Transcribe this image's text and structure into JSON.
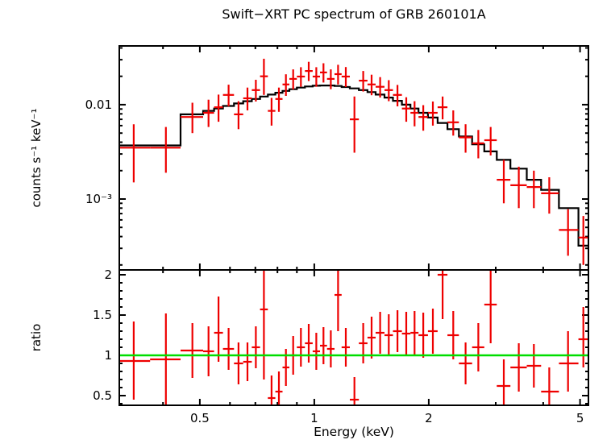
{
  "chart_data": [
    {
      "type": "scatter",
      "name": "spectrum",
      "title": "Swift−XRT PC spectrum of GRB 260101A",
      "ylabel": "counts s⁻¹ keV⁻¹",
      "yscale": "log",
      "ylim": [
        0.000177,
        0.042
      ],
      "y_ticks": [
        {
          "v": 0.01,
          "label": "0.01"
        },
        {
          "v": 0.001,
          "label": "10⁻³"
        }
      ],
      "y_minor": [
        0.0002,
        0.0003,
        0.0004,
        0.0005,
        0.0006,
        0.0007,
        0.0008,
        0.0009,
        0.002,
        0.003,
        0.004,
        0.005,
        0.006,
        0.007,
        0.008,
        0.009,
        0.02,
        0.03,
        0.04
      ],
      "point_color": "#ee0000",
      "points_format": [
        "E",
        "E_lo",
        "E_hi",
        "value",
        "value_lo",
        "value_hi"
      ],
      "points": [
        [
          0.335,
          0.307,
          0.37,
          0.0035,
          0.0015,
          0.0062
        ],
        [
          0.407,
          0.37,
          0.445,
          0.0035,
          0.0019,
          0.0058
        ],
        [
          0.478,
          0.445,
          0.51,
          0.0074,
          0.005,
          0.0105
        ],
        [
          0.527,
          0.51,
          0.545,
          0.0082,
          0.0058,
          0.0113
        ],
        [
          0.56,
          0.545,
          0.575,
          0.0094,
          0.0066,
          0.0128
        ],
        [
          0.595,
          0.575,
          0.615,
          0.0127,
          0.0096,
          0.0163
        ],
        [
          0.632,
          0.615,
          0.65,
          0.0079,
          0.0055,
          0.0109
        ],
        [
          0.667,
          0.65,
          0.685,
          0.0117,
          0.0087,
          0.0152
        ],
        [
          0.702,
          0.685,
          0.72,
          0.0143,
          0.0108,
          0.0184
        ],
        [
          0.737,
          0.72,
          0.755,
          0.02,
          0.0127,
          0.0307
        ],
        [
          0.772,
          0.755,
          0.79,
          0.0086,
          0.006,
          0.0118
        ],
        [
          0.807,
          0.79,
          0.825,
          0.0115,
          0.0084,
          0.0152
        ],
        [
          0.842,
          0.825,
          0.86,
          0.0164,
          0.0124,
          0.021
        ],
        [
          0.88,
          0.86,
          0.9,
          0.0188,
          0.0145,
          0.0237
        ],
        [
          0.922,
          0.9,
          0.945,
          0.0199,
          0.0155,
          0.025
        ],
        [
          0.967,
          0.945,
          0.99,
          0.0228,
          0.0178,
          0.0285
        ],
        [
          1.012,
          0.99,
          1.035,
          0.0199,
          0.0155,
          0.025
        ],
        [
          1.057,
          1.035,
          1.08,
          0.022,
          0.0172,
          0.0275
        ],
        [
          1.105,
          1.08,
          1.13,
          0.0188,
          0.0146,
          0.0237
        ],
        [
          1.155,
          1.13,
          1.18,
          0.0211,
          0.0164,
          0.0265
        ],
        [
          1.21,
          1.18,
          1.24,
          0.0199,
          0.0154,
          0.0251
        ],
        [
          1.275,
          1.24,
          1.31,
          0.007,
          0.0031,
          0.0122
        ],
        [
          1.345,
          1.31,
          1.38,
          0.018,
          0.0138,
          0.0228
        ],
        [
          1.415,
          1.38,
          1.45,
          0.0164,
          0.0126,
          0.0208
        ],
        [
          1.49,
          1.45,
          1.53,
          0.0155,
          0.0119,
          0.0196
        ],
        [
          1.57,
          1.53,
          1.61,
          0.0143,
          0.0109,
          0.0182
        ],
        [
          1.655,
          1.61,
          1.7,
          0.0127,
          0.0096,
          0.0162
        ],
        [
          1.745,
          1.7,
          1.79,
          0.0091,
          0.0066,
          0.012
        ],
        [
          1.835,
          1.79,
          1.88,
          0.0082,
          0.0059,
          0.0109
        ],
        [
          1.935,
          1.88,
          1.99,
          0.0074,
          0.0053,
          0.0099
        ],
        [
          2.05,
          1.99,
          2.11,
          0.0082,
          0.006,
          0.0108
        ],
        [
          2.175,
          2.11,
          2.24,
          0.0094,
          0.007,
          0.0122
        ],
        [
          2.32,
          2.24,
          2.4,
          0.0065,
          0.0047,
          0.0087
        ],
        [
          2.5,
          2.4,
          2.6,
          0.0045,
          0.0031,
          0.0062
        ],
        [
          2.7,
          2.6,
          2.8,
          0.0039,
          0.0027,
          0.0054
        ],
        [
          2.91,
          2.8,
          3.02,
          0.0042,
          0.0029,
          0.0058
        ],
        [
          3.15,
          3.02,
          3.28,
          0.0016,
          0.0009,
          0.0026
        ],
        [
          3.45,
          3.28,
          3.62,
          0.0014,
          0.0008,
          0.0022
        ],
        [
          3.78,
          3.62,
          3.95,
          0.00134,
          0.0008,
          0.002
        ],
        [
          4.15,
          3.95,
          4.4,
          0.00115,
          0.0007,
          0.0017
        ],
        [
          4.65,
          4.4,
          4.95,
          0.00047,
          0.00025,
          0.00078
        ],
        [
          5.1,
          4.95,
          5.26,
          0.00039,
          0.0002,
          0.00066
        ]
      ],
      "model": {
        "name": "folded model (stepped line)",
        "color": "#000000",
        "steps": [
          [
            0.307,
            0.445,
            0.0037
          ],
          [
            0.445,
            0.51,
            0.0079
          ],
          [
            0.51,
            0.545,
            0.0086
          ],
          [
            0.545,
            0.575,
            0.0091
          ],
          [
            0.575,
            0.615,
            0.0097
          ],
          [
            0.615,
            0.65,
            0.0103
          ],
          [
            0.65,
            0.685,
            0.0109
          ],
          [
            0.685,
            0.72,
            0.0115
          ],
          [
            0.72,
            0.755,
            0.0122
          ],
          [
            0.755,
            0.79,
            0.0128
          ],
          [
            0.79,
            0.825,
            0.0134
          ],
          [
            0.825,
            0.86,
            0.014
          ],
          [
            0.86,
            0.9,
            0.0146
          ],
          [
            0.9,
            0.945,
            0.0152
          ],
          [
            0.945,
            0.99,
            0.0156
          ],
          [
            0.99,
            1.035,
            0.0159
          ],
          [
            1.035,
            1.13,
            0.016
          ],
          [
            1.13,
            1.18,
            0.0158
          ],
          [
            1.18,
            1.24,
            0.0154
          ],
          [
            1.24,
            1.31,
            0.0149
          ],
          [
            1.31,
            1.38,
            0.0143
          ],
          [
            1.38,
            1.45,
            0.0136
          ],
          [
            1.45,
            1.53,
            0.0128
          ],
          [
            1.53,
            1.61,
            0.0119
          ],
          [
            1.61,
            1.7,
            0.011
          ],
          [
            1.7,
            1.79,
            0.01
          ],
          [
            1.79,
            1.88,
            0.0091
          ],
          [
            1.88,
            1.99,
            0.0082
          ],
          [
            1.99,
            2.11,
            0.0073
          ],
          [
            2.11,
            2.24,
            0.0064
          ],
          [
            2.24,
            2.4,
            0.0055
          ],
          [
            2.4,
            2.6,
            0.0046
          ],
          [
            2.6,
            2.8,
            0.0038
          ],
          [
            2.8,
            3.02,
            0.0032
          ],
          [
            3.02,
            3.28,
            0.0026
          ],
          [
            3.28,
            3.62,
            0.0021
          ],
          [
            3.62,
            3.95,
            0.0016
          ],
          [
            3.95,
            4.4,
            0.00125
          ],
          [
            4.4,
            4.95,
            0.0008
          ],
          [
            4.95,
            5.26,
            0.00032
          ]
        ]
      }
    },
    {
      "type": "scatter",
      "name": "ratio",
      "ylabel": "ratio",
      "xlabel": "Energy (keV)",
      "yscale": "linear",
      "ylim": [
        0.38,
        2.06
      ],
      "y_ticks": [
        {
          "v": 2,
          "label": "2"
        },
        {
          "v": 1.5,
          "label": "1.5"
        },
        {
          "v": 1,
          "label": "1"
        },
        {
          "v": 0.5,
          "label": "0.5"
        }
      ],
      "y_minor": [
        0.4,
        0.6,
        0.7,
        0.8,
        0.9,
        1.1,
        1.2,
        1.3,
        1.4,
        1.6,
        1.7,
        1.8,
        1.9
      ],
      "point_color": "#ee0000",
      "reference_line": {
        "y": 1,
        "color": "#00dd00"
      },
      "points_format": [
        "E",
        "E_lo",
        "E_hi",
        "ratio",
        "ratio_lo",
        "ratio_hi"
      ],
      "points": [
        [
          0.335,
          0.307,
          0.37,
          0.93,
          0.45,
          1.42
        ],
        [
          0.407,
          0.37,
          0.445,
          0.95,
          0.38,
          1.52
        ],
        [
          0.478,
          0.445,
          0.51,
          1.06,
          0.72,
          1.4
        ],
        [
          0.527,
          0.51,
          0.545,
          1.05,
          0.74,
          1.36
        ],
        [
          0.56,
          0.545,
          0.575,
          1.28,
          0.92,
          1.73
        ],
        [
          0.595,
          0.575,
          0.615,
          1.08,
          0.82,
          1.34
        ],
        [
          0.632,
          0.615,
          0.65,
          0.9,
          0.64,
          1.16
        ],
        [
          0.667,
          0.65,
          0.685,
          0.92,
          0.68,
          1.16
        ],
        [
          0.702,
          0.685,
          0.72,
          1.1,
          0.84,
          1.36
        ],
        [
          0.737,
          0.72,
          0.755,
          1.57,
          0.7,
          2.2
        ],
        [
          0.772,
          0.755,
          0.79,
          0.47,
          0.3,
          0.75
        ],
        [
          0.807,
          0.79,
          0.825,
          0.55,
          0.36,
          0.8
        ],
        [
          0.842,
          0.825,
          0.86,
          0.85,
          0.62,
          1.08
        ],
        [
          0.88,
          0.86,
          0.9,
          1.0,
          0.76,
          1.24
        ],
        [
          0.922,
          0.9,
          0.945,
          1.1,
          0.86,
          1.34
        ],
        [
          0.967,
          0.945,
          0.99,
          1.15,
          0.91,
          1.39
        ],
        [
          1.012,
          0.99,
          1.035,
          1.05,
          0.82,
          1.28
        ],
        [
          1.057,
          1.035,
          1.08,
          1.12,
          0.89,
          1.35
        ],
        [
          1.105,
          1.08,
          1.13,
          1.08,
          0.85,
          1.31
        ],
        [
          1.155,
          1.13,
          1.18,
          1.75,
          1.3,
          2.2
        ],
        [
          1.21,
          1.18,
          1.24,
          1.1,
          0.86,
          1.34
        ],
        [
          1.275,
          1.24,
          1.31,
          0.45,
          0.3,
          0.73
        ],
        [
          1.345,
          1.31,
          1.38,
          1.15,
          0.9,
          1.4
        ],
        [
          1.415,
          1.38,
          1.45,
          1.22,
          0.96,
          1.48
        ],
        [
          1.49,
          1.45,
          1.53,
          1.28,
          1.02,
          1.54
        ],
        [
          1.57,
          1.53,
          1.61,
          1.25,
          0.99,
          1.51
        ],
        [
          1.655,
          1.61,
          1.7,
          1.3,
          1.04,
          1.56
        ],
        [
          1.745,
          1.7,
          1.79,
          1.27,
          1.0,
          1.54
        ],
        [
          1.835,
          1.79,
          1.88,
          1.28,
          1.01,
          1.55
        ],
        [
          1.935,
          1.88,
          1.99,
          1.25,
          0.97,
          1.53
        ],
        [
          2.05,
          1.99,
          2.11,
          1.3,
          1.02,
          1.58
        ],
        [
          2.175,
          2.11,
          2.24,
          2.0,
          1.45,
          2.55
        ],
        [
          2.32,
          2.24,
          2.4,
          1.25,
          0.95,
          1.55
        ],
        [
          2.5,
          2.4,
          2.6,
          0.9,
          0.64,
          1.16
        ],
        [
          2.7,
          2.6,
          2.8,
          1.1,
          0.8,
          1.4
        ],
        [
          2.91,
          2.8,
          3.02,
          1.63,
          1.15,
          2.3
        ],
        [
          3.15,
          3.02,
          3.28,
          0.62,
          0.36,
          0.95
        ],
        [
          3.45,
          3.28,
          3.62,
          0.85,
          0.55,
          1.15
        ],
        [
          3.78,
          3.62,
          3.95,
          0.87,
          0.6,
          1.14
        ],
        [
          4.15,
          3.95,
          4.4,
          0.55,
          0.3,
          0.85
        ],
        [
          4.65,
          4.4,
          4.95,
          0.9,
          0.55,
          1.3
        ],
        [
          5.1,
          4.95,
          5.26,
          1.2,
          0.85,
          1.6
        ]
      ]
    }
  ],
  "x_axis": {
    "scale": "log",
    "lim": [
      0.307,
      5.26
    ],
    "ticks": [
      {
        "v": 0.5,
        "label": "0.5"
      },
      {
        "v": 1,
        "label": "1"
      },
      {
        "v": 2,
        "label": "2"
      },
      {
        "v": 5,
        "label": "5"
      }
    ],
    "minor_ticks": [
      0.4,
      0.6,
      0.7,
      0.8,
      0.9,
      3,
      4
    ]
  }
}
